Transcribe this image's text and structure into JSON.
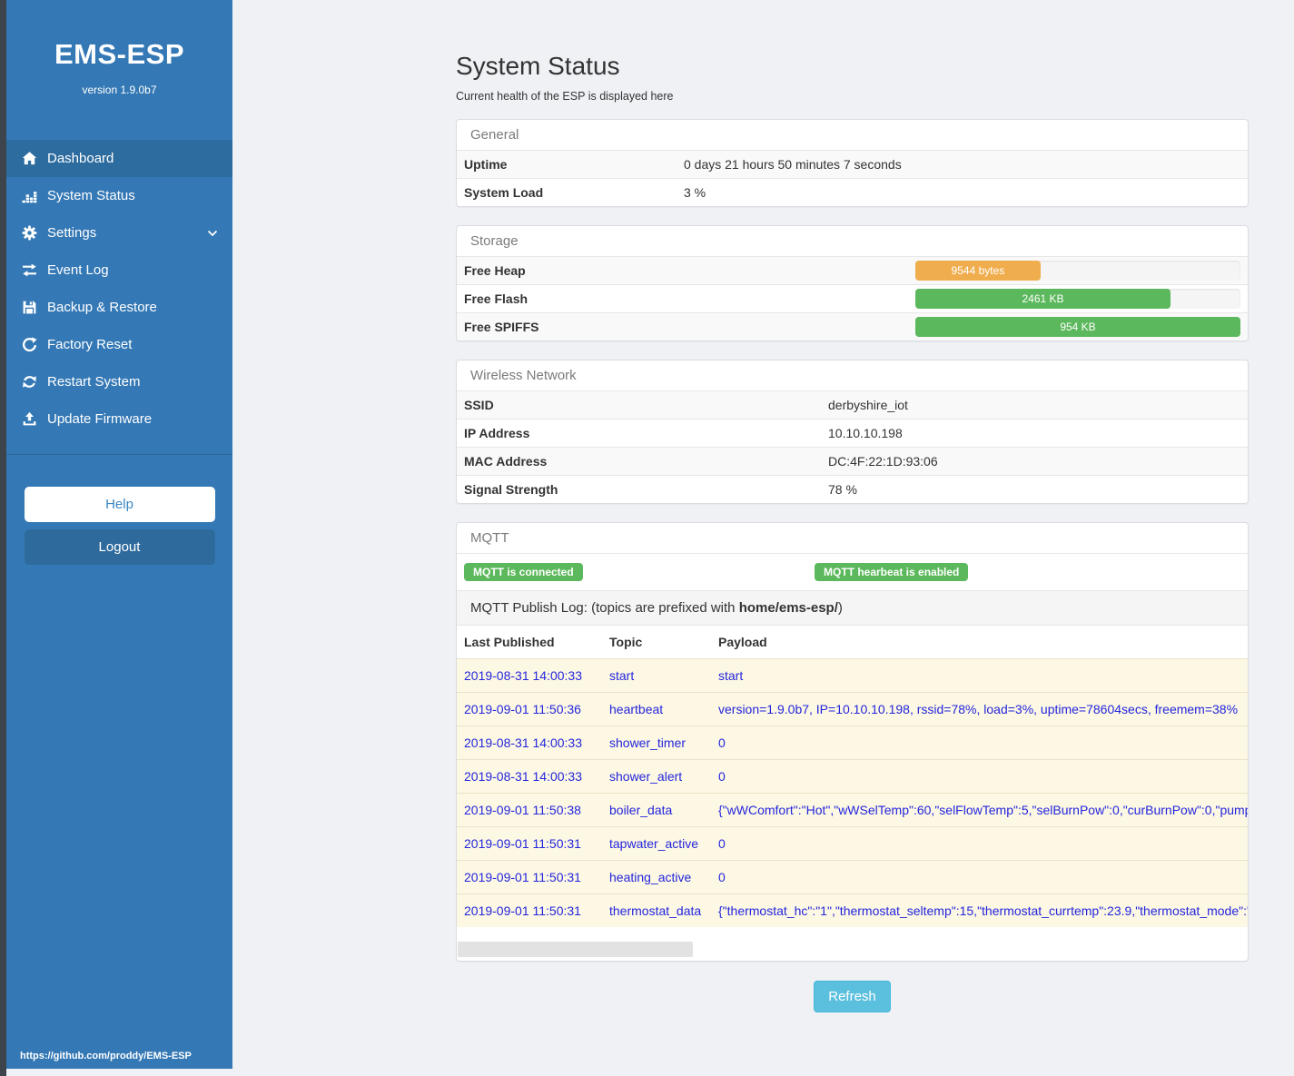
{
  "sidebar": {
    "brand": "EMS-ESP",
    "version": "version 1.9.0b7",
    "nav": [
      {
        "label": "Dashboard",
        "icon": "home-icon",
        "active": true
      },
      {
        "label": "System Status",
        "icon": "chart-icon",
        "active": false
      },
      {
        "label": "Settings",
        "icon": "gear-icon",
        "active": false,
        "chevron": true
      },
      {
        "label": "Event Log",
        "icon": "exchange-icon",
        "active": false
      },
      {
        "label": "Backup & Restore",
        "icon": "save-icon",
        "active": false
      },
      {
        "label": "Factory Reset",
        "icon": "redo-icon",
        "active": false
      },
      {
        "label": "Restart System",
        "icon": "sync-icon",
        "active": false
      },
      {
        "label": "Update Firmware",
        "icon": "upload-icon",
        "active": false
      }
    ],
    "help_label": "Help",
    "logout_label": "Logout",
    "footer_link": "https://github.com/proddy/EMS-ESP"
  },
  "header": {
    "title": "System Status",
    "subtitle": "Current health of the ESP is displayed here"
  },
  "panels": {
    "general": {
      "title": "General",
      "rows": [
        {
          "label": "Uptime",
          "value": "0 days 21 hours 50 minutes 7 seconds"
        },
        {
          "label": "System Load",
          "value": "3 %"
        }
      ]
    },
    "storage": {
      "title": "Storage",
      "rows": [
        {
          "label": "Free Heap",
          "bar_label": "9544 bytes",
          "percent": 38.5,
          "color": "#f0ad4e"
        },
        {
          "label": "Free Flash",
          "bar_label": "2461 KB",
          "percent": 78.5,
          "color": "#5cb85c"
        },
        {
          "label": "Free SPIFFS",
          "bar_label": "954 KB",
          "percent": 100,
          "color": "#5cb85c"
        }
      ]
    },
    "wireless": {
      "title": "Wireless Network",
      "rows": [
        {
          "label": "SSID",
          "value": "derbyshire_iot"
        },
        {
          "label": "IP Address",
          "value": "10.10.10.198"
        },
        {
          "label": "MAC Address",
          "value": "DC:4F:22:1D:93:06"
        },
        {
          "label": "Signal Strength",
          "value": "78 %"
        }
      ]
    },
    "mqtt": {
      "title": "MQTT",
      "badges": [
        "MQTT is connected",
        "MQTT hearbeat is enabled"
      ],
      "log_caption_prefix": "MQTT Publish Log: (topics are prefixed with ",
      "log_topic_prefix": "home/ems-esp/",
      "log_caption_suffix": ")",
      "table": {
        "headers": [
          "Last Published",
          "Topic",
          "Payload"
        ],
        "rows": [
          [
            "2019-08-31 14:00:33",
            "start",
            "start"
          ],
          [
            "2019-09-01 11:50:36",
            "heartbeat",
            "version=1.9.0b7, IP=10.10.10.198, rssid=78%, load=3%, uptime=78604secs, freemem=38%"
          ],
          [
            "2019-08-31 14:00:33",
            "shower_timer",
            "0"
          ],
          [
            "2019-08-31 14:00:33",
            "shower_alert",
            "0"
          ],
          [
            "2019-09-01 11:50:38",
            "boiler_data",
            "{\"wWComfort\":\"Hot\",\"wWSelTemp\":60,\"selFlowTemp\":5,\"selBurnPow\":0,\"curBurnPow\":0,\"pump"
          ],
          [
            "2019-09-01 11:50:31",
            "tapwater_active",
            "0"
          ],
          [
            "2019-09-01 11:50:31",
            "heating_active",
            "0"
          ],
          [
            "2019-09-01 11:50:31",
            "thermostat_data",
            "{\"thermostat_hc\":\"1\",\"thermostat_seltemp\":15,\"thermostat_currtemp\":23.9,\"thermostat_mode\":\""
          ]
        ]
      }
    }
  },
  "refresh_label": "Refresh",
  "colors": {
    "sidebar_blue": "#3478b5",
    "active_item_blue": "#2d6c9f",
    "bar_orange": "#f0ad4e",
    "bar_green": "#5cb85c",
    "badge_green": "#5cb85c",
    "log_text_blue": "#2525dd",
    "refresh_blue": "#5bc0de"
  }
}
